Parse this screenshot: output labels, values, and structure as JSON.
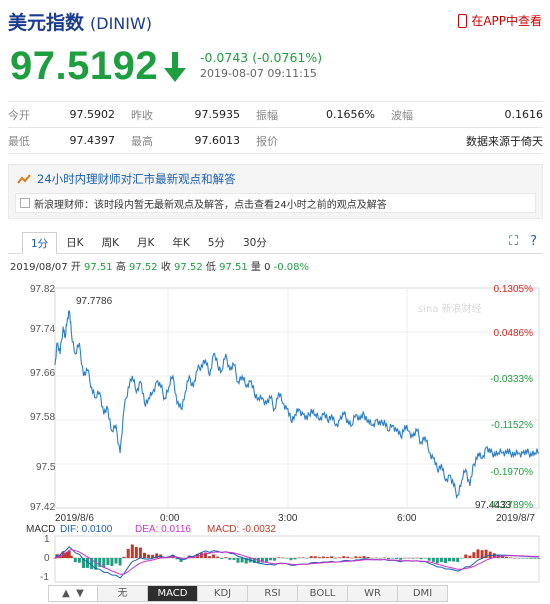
{
  "header": {
    "title": "美元指数",
    "code": "(DINIW)",
    "app_link": "在APP中查看"
  },
  "quote": {
    "price": "97.5192",
    "change": "-0.0743 (-0.0761%)",
    "datetime": "2019-08-07 09:11:15",
    "direction": "down"
  },
  "stats": [
    [
      {
        "label": "今开",
        "value": "97.5902"
      },
      {
        "label": "昨收",
        "value": "97.5935"
      },
      {
        "label": "振幅",
        "value": "0.1656%"
      },
      {
        "label": "波幅",
        "value": "0.1616"
      }
    ],
    [
      {
        "label": "最低",
        "value": "97.4397"
      },
      {
        "label": "最高",
        "value": "97.6013"
      },
      {
        "label": "报价",
        "value": "数据来源于倚天"
      }
    ]
  ],
  "news": {
    "heading": "24小时内理财师对汇市最新观点和解答",
    "body": "新浪理财师：该时段内暂无最新观点及解答，点击查看24小时之前的观点及解答"
  },
  "tabs": [
    "1分",
    "日K",
    "周K",
    "月K",
    "年K",
    "5分",
    "30分"
  ],
  "active_tab": "1分",
  "ohlc": {
    "date": "2019/08/07",
    "open_label": "开",
    "open": "97.51",
    "high_label": "高",
    "high": "97.52",
    "close_label": "收",
    "close": "97.52",
    "low_label": "低",
    "low": "97.51",
    "vol_label": "量",
    "vol": "0",
    "pct": "-0.08%"
  },
  "watermark": "sina 新浪财经",
  "macd_legend": {
    "macd_title": "MACD",
    "dif": "DIF: 0.0100",
    "dea": "DEA: 0.0116",
    "macd": "MACD: -0.0032"
  },
  "bottom_tabs": [
    "无",
    "MACD",
    "KDJ",
    "RSI",
    "BOLL",
    "WR",
    "DMI"
  ],
  "active_bottom_tab": "MACD",
  "colors": {
    "price_up": "#e02020",
    "price_down": "#1e9e3e",
    "line": "#2a7ec8",
    "dif": "#1a5fb4",
    "dea": "#cc33cc",
    "macd_pos": "#c0392b",
    "macd_neg": "#1e9e7e"
  },
  "chart_data": {
    "type": "line",
    "ylim": [
      97.42,
      97.82
    ],
    "y_ticks": [
      "97.82",
      "97.74",
      "97.66",
      "97.58",
      "97.5",
      "97.42"
    ],
    "pct_ticks": [
      "0.1305%",
      "0.0486%",
      "-0.0333%",
      "-0.1152%",
      "-0.1970%",
      "-0.2789%"
    ],
    "x_ticks": [
      "2019/8/6",
      "0:00",
      "3:00",
      "6:00",
      "2019/8/7"
    ],
    "high_label": "97.7786",
    "low_label": "97.4433",
    "x": [
      0,
      2,
      5,
      8,
      10,
      12,
      14,
      16,
      20,
      24,
      28,
      32,
      36,
      40,
      44,
      48,
      52,
      56,
      60,
      64,
      68,
      72,
      76,
      80,
      84,
      88,
      92,
      96,
      100,
      104,
      108,
      112,
      116,
      120,
      124,
      128,
      132,
      136,
      140,
      144,
      148,
      152,
      156,
      160,
      164,
      168,
      172,
      176,
      180,
      184,
      188,
      192,
      196,
      200,
      204,
      208,
      212,
      216,
      220,
      224,
      228,
      232,
      236,
      240,
      244,
      248,
      252,
      256,
      260,
      264,
      268,
      272,
      276,
      280,
      284,
      288,
      292,
      296,
      300,
      304,
      308,
      312,
      316,
      320,
      324,
      328,
      332,
      336,
      340,
      344,
      348,
      352,
      356,
      360,
      364,
      368,
      372,
      376,
      380,
      384,
      388,
      392,
      396,
      400,
      404,
      408,
      412,
      416,
      420,
      424,
      428,
      432,
      436,
      440,
      444,
      448,
      452,
      456,
      460,
      464,
      468,
      472,
      476
    ],
    "values": [
      97.68,
      97.72,
      97.7,
      97.75,
      97.73,
      97.76,
      97.7786,
      97.74,
      97.7,
      97.72,
      97.66,
      97.67,
      97.64,
      97.62,
      97.63,
      97.59,
      97.6,
      97.56,
      97.57,
      97.52,
      97.6,
      97.64,
      97.66,
      97.63,
      97.65,
      97.61,
      97.62,
      97.63,
      97.65,
      97.64,
      97.62,
      97.64,
      97.66,
      97.61,
      97.6,
      97.63,
      97.66,
      97.64,
      97.67,
      97.68,
      97.69,
      97.66,
      97.7,
      97.68,
      97.67,
      97.7,
      97.67,
      97.68,
      97.65,
      97.66,
      97.64,
      97.65,
      97.63,
      97.62,
      97.62,
      97.61,
      97.62,
      97.6,
      97.63,
      97.61,
      97.6,
      97.58,
      97.59,
      97.6,
      97.59,
      97.58,
      97.6,
      97.59,
      97.58,
      97.59,
      97.58,
      97.59,
      97.57,
      97.58,
      97.59,
      97.58,
      97.57,
      97.59,
      97.58,
      97.59,
      97.58,
      97.57,
      97.58,
      97.57,
      97.58,
      97.56,
      97.57,
      97.56,
      97.55,
      97.57,
      97.56,
      97.55,
      97.56,
      97.54,
      97.55,
      97.52,
      97.51,
      97.49,
      97.5,
      97.47,
      97.48,
      97.46,
      97.4433,
      97.47,
      97.49,
      97.46,
      97.5,
      97.52,
      97.51,
      97.53,
      97.52,
      97.52,
      97.52,
      97.52,
      97.52,
      97.52,
      97.52,
      97.52,
      97.52,
      97.52,
      97.52,
      97.52,
      97.52
    ]
  },
  "macd_data": {
    "y_ticks": [
      "1",
      "0",
      "-1"
    ]
  }
}
